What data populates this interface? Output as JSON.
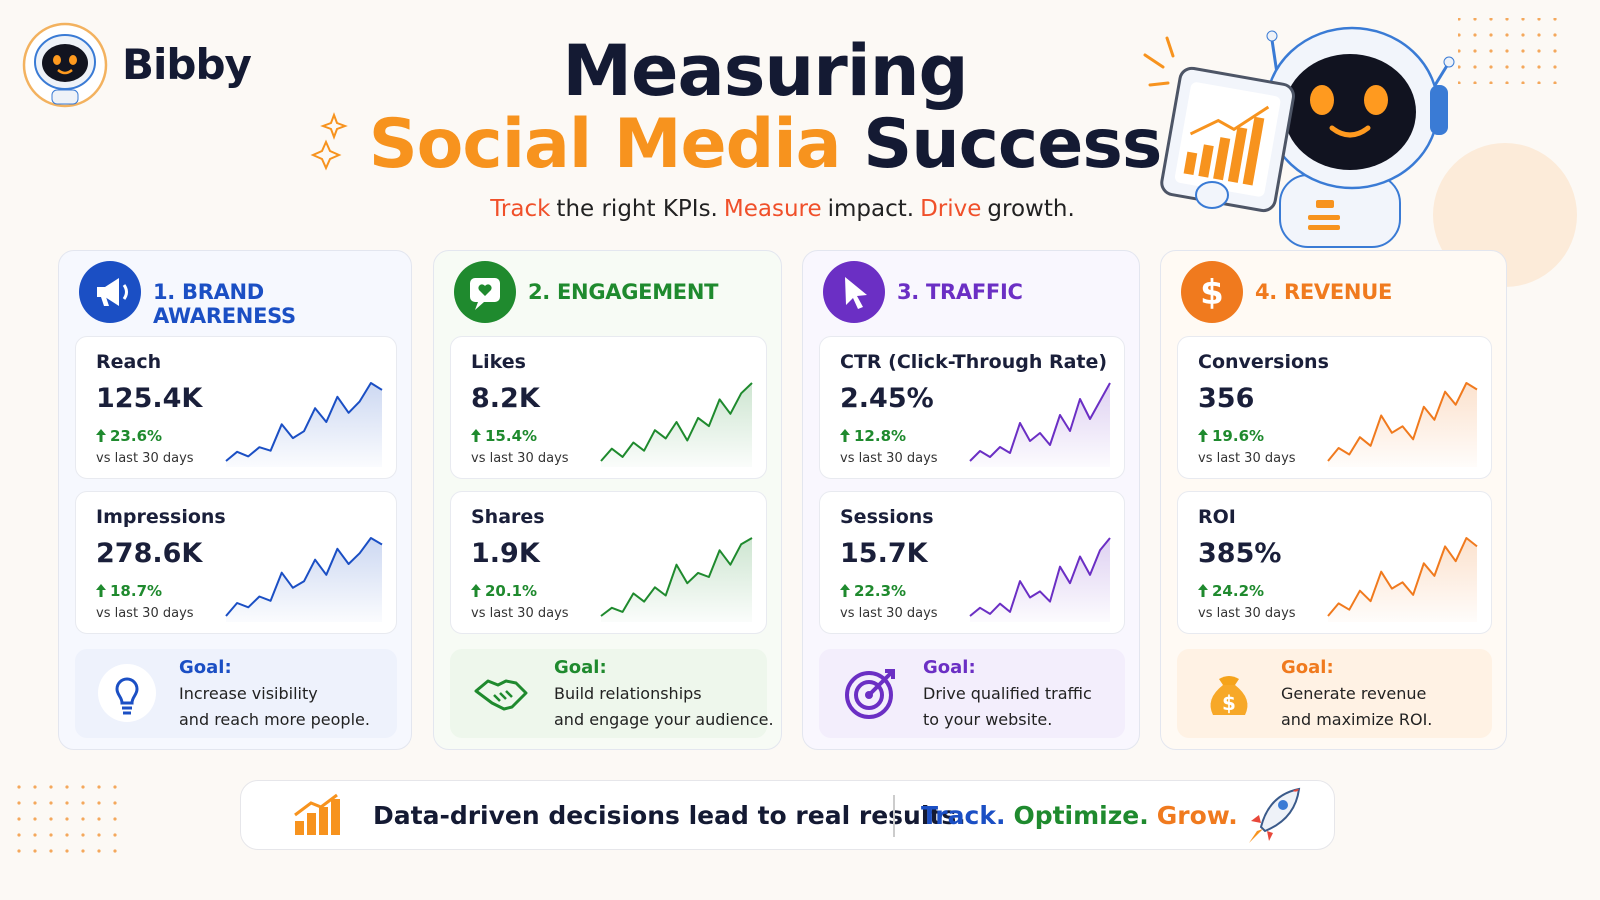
{
  "brand": "Bibby",
  "title": {
    "line1": "Measuring",
    "highlight": "Social Media",
    "rest": "Success"
  },
  "subtitle": [
    {
      "text": "Track",
      "color": "#f0502a"
    },
    {
      "text": "the right KPIs.",
      "color": "#222222"
    },
    {
      "text": "Measure",
      "color": "#f0502a"
    },
    {
      "text": "impact.",
      "color": "#222222"
    },
    {
      "text": "Drive",
      "color": "#f0502a"
    },
    {
      "text": "growth.",
      "color": "#222222"
    }
  ],
  "cards": [
    {
      "title": "1. BRAND AWARENESS",
      "color": "#1b4fc4",
      "tint": "#f6f8fe",
      "goal_tint": "#eef2fc",
      "metrics": [
        {
          "name": "Reach",
          "value": "125.4K",
          "change": "23.6%",
          "period": "vs last 30 days",
          "sparkline": [
            10,
            18,
            14,
            22,
            19,
            42,
            30,
            36,
            56,
            44,
            66,
            52,
            62,
            78,
            72
          ]
        },
        {
          "name": "Impressions",
          "value": "278.6K",
          "change": "18.7%",
          "period": "vs last 30 days",
          "sparkline": [
            8,
            20,
            16,
            26,
            22,
            48,
            34,
            40,
            60,
            46,
            70,
            56,
            66,
            80,
            74
          ]
        }
      ],
      "goal_label": "Goal:",
      "goal": [
        "Increase visibility",
        "and reach more people."
      ]
    },
    {
      "title": "2. ENGAGEMENT",
      "color": "#1f8a2e",
      "tint": "#f7fbf5",
      "goal_tint": "#eef7ec",
      "metrics": [
        {
          "name": "Likes",
          "value": "8.2K",
          "change": "15.4%",
          "period": "vs last 30 days",
          "sparkline": [
            10,
            22,
            14,
            28,
            20,
            40,
            32,
            48,
            30,
            52,
            44,
            70,
            56,
            76,
            86
          ]
        },
        {
          "name": "Shares",
          "value": "1.9K",
          "change": "20.1%",
          "period": "vs last 30 days",
          "sparkline": [
            8,
            16,
            12,
            30,
            22,
            36,
            28,
            58,
            40,
            50,
            46,
            72,
            58,
            78,
            84
          ]
        }
      ],
      "goal_label": "Goal:",
      "goal": [
        "Build relationships",
        "and engage your audience."
      ]
    },
    {
      "title": "3. TRAFFIC",
      "color": "#6b2fc4",
      "tint": "#f9f7fe",
      "goal_tint": "#f3eefc",
      "metrics": [
        {
          "name": "CTR (Click-Through Rate)",
          "value": "2.45%",
          "change": "12.8%",
          "period": "vs last 30 days",
          "sparkline": [
            10,
            20,
            14,
            24,
            18,
            48,
            30,
            38,
            26,
            56,
            40,
            72,
            52,
            70,
            88
          ]
        },
        {
          "name": "Sessions",
          "value": "15.7K",
          "change": "22.3%",
          "period": "vs last 30 days",
          "sparkline": [
            10,
            18,
            12,
            22,
            14,
            44,
            28,
            34,
            24,
            58,
            42,
            68,
            50,
            74,
            86
          ]
        }
      ],
      "goal_label": "Goal:",
      "goal": [
        "Drive qualified traffic",
        "to your website."
      ]
    },
    {
      "title": "4. REVENUE",
      "color": "#f07a1e",
      "tint": "#fffaf4",
      "goal_tint": "#fff2e4",
      "metrics": [
        {
          "name": "Conversions",
          "value": "356",
          "change": "19.6%",
          "period": "vs last 30 days",
          "sparkline": [
            8,
            20,
            14,
            30,
            22,
            50,
            34,
            40,
            28,
            58,
            46,
            72,
            60,
            80,
            74
          ]
        },
        {
          "name": "ROI",
          "value": "385%",
          "change": "24.2%",
          "period": "vs last 30 days",
          "sparkline": [
            10,
            22,
            16,
            34,
            24,
            52,
            36,
            42,
            30,
            60,
            48,
            76,
            62,
            84,
            76
          ]
        }
      ],
      "goal_label": "Goal:",
      "goal": [
        "Generate revenue",
        "and maximize ROI."
      ]
    }
  ],
  "footer": {
    "message": "Data-driven decisions lead to real results.",
    "slogan": [
      {
        "text": "Track.",
        "color": "#1b4fc4"
      },
      {
        "text": "Optimize.",
        "color": "#1f8a2e"
      },
      {
        "text": "Grow.",
        "color": "#f07a1e"
      }
    ]
  }
}
